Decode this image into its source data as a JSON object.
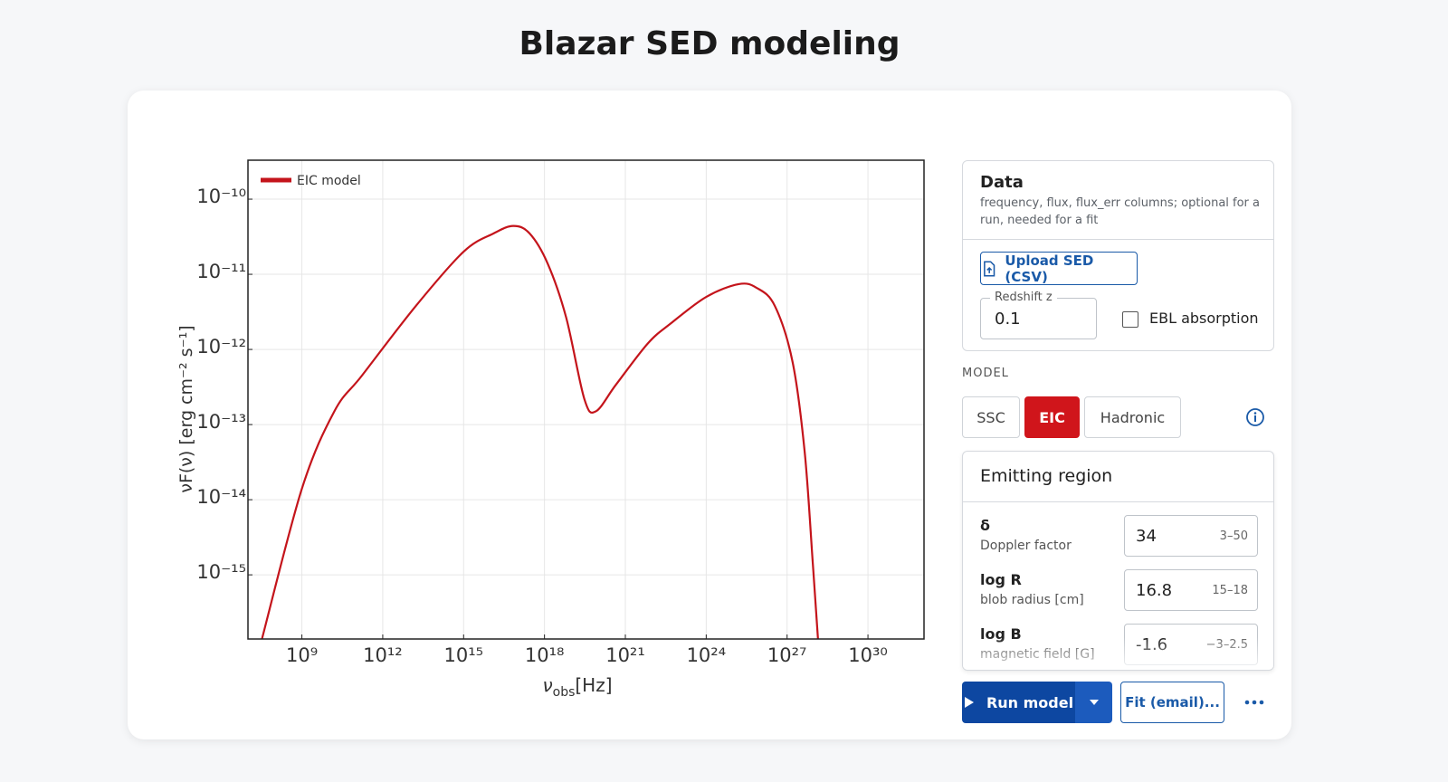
{
  "header": {
    "title": "Blazar SED modeling"
  },
  "chart_data": {
    "type": "line",
    "xlabel": [
      "ν",
      "obs",
      "[Hz]"
    ],
    "ylabel": "νF(ν) [erg cm⁻² s⁻¹]",
    "xscale": "log",
    "yscale": "log",
    "grid": true,
    "legend": "upper left",
    "xlim": [
      10000000.0,
      1.2e+32
    ],
    "ylim": [
      1.4e-16,
      3.3e-10
    ],
    "xticks": [
      {
        "value": 1000000000.0,
        "label": "10⁹"
      },
      {
        "value": 1000000000000.0,
        "label": "10¹²"
      },
      {
        "value": 1000000000000000.0,
        "label": "10¹⁵"
      },
      {
        "value": 1e+18,
        "label": "10¹⁸"
      },
      {
        "value": 1e+21,
        "label": "10²¹"
      },
      {
        "value": 1e+24,
        "label": "10²⁴"
      },
      {
        "value": 1e+27,
        "label": "10²⁷"
      },
      {
        "value": 1e+30,
        "label": "10³⁰"
      }
    ],
    "yticks": [
      {
        "value": 1e-10,
        "label": "10⁻¹⁰"
      },
      {
        "value": 1e-11,
        "label": "10⁻¹¹"
      },
      {
        "value": 1e-12,
        "label": "10⁻¹²"
      },
      {
        "value": 1e-13,
        "label": "10⁻¹³"
      },
      {
        "value": 1e-14,
        "label": "10⁻¹⁴"
      },
      {
        "value": 1e-15,
        "label": "10⁻¹⁵"
      }
    ],
    "x": [
      33000000.0,
      1000000000.0,
      16000000000.0,
      170000000000.0,
      17000000000000.0,
      1000000000000000.0,
      1.3e+16,
      7e+16,
      2.8e+17,
      1.3e+18,
      6.3e+18,
      3e+19,
      8e+19,
      4.5e+20,
      6.8e+21,
      4.7e+22,
      1e+24,
      1.6e+25,
      7.4e+25,
      3.5e+26,
      1.6e+27,
      4.5e+27,
      8.9e+27,
      1.4e+28
    ],
    "series": [
      {
        "name": "EIC model",
        "color": "#c4141b",
        "values": [
          1.4e-16,
          1.4e-14,
          1.5e-13,
          4.5e-13,
          3.8e-12,
          2e-11,
          3.5e-11,
          4.4e-11,
          3.5e-11,
          1.4e-11,
          2.7e-12,
          2.2e-13,
          1.5e-13,
          3.4e-13,
          1.2e-12,
          2.2e-12,
          5e-12,
          7.4e-12,
          6.6e-12,
          3.8e-12,
          6.8e-13,
          4.3e-14,
          1.5e-15,
          1.4e-16
        ]
      }
    ]
  },
  "panel": {
    "data": {
      "title": "Data",
      "description": "frequency, flux, flux_err columns; optional for a run, needed for a fit",
      "upload_button": "Upload SED (CSV)",
      "redshift_label": "Redshift z",
      "redshift_value": "0.1",
      "ebl_label": "EBL absorption"
    },
    "model": {
      "label": "MODEL",
      "options": [
        {
          "label": "SSC",
          "active": false
        },
        {
          "label": "EIC",
          "active": true
        },
        {
          "label": "Hadronic",
          "active": false
        }
      ]
    },
    "emitting_region": {
      "title": "Emitting region",
      "params": [
        {
          "symbol": "δ",
          "description": "Doppler factor",
          "value": "34",
          "range": "3–50"
        },
        {
          "symbol": "log R",
          "description": "blob radius [cm]",
          "value": "16.8",
          "range": "15–18"
        },
        {
          "symbol": "log B",
          "description": "magnetic field [G]",
          "value": "-1.6",
          "range": "−3–2.5"
        }
      ]
    },
    "actions": {
      "run": "Run model",
      "fit": "Fit (email)..."
    }
  }
}
